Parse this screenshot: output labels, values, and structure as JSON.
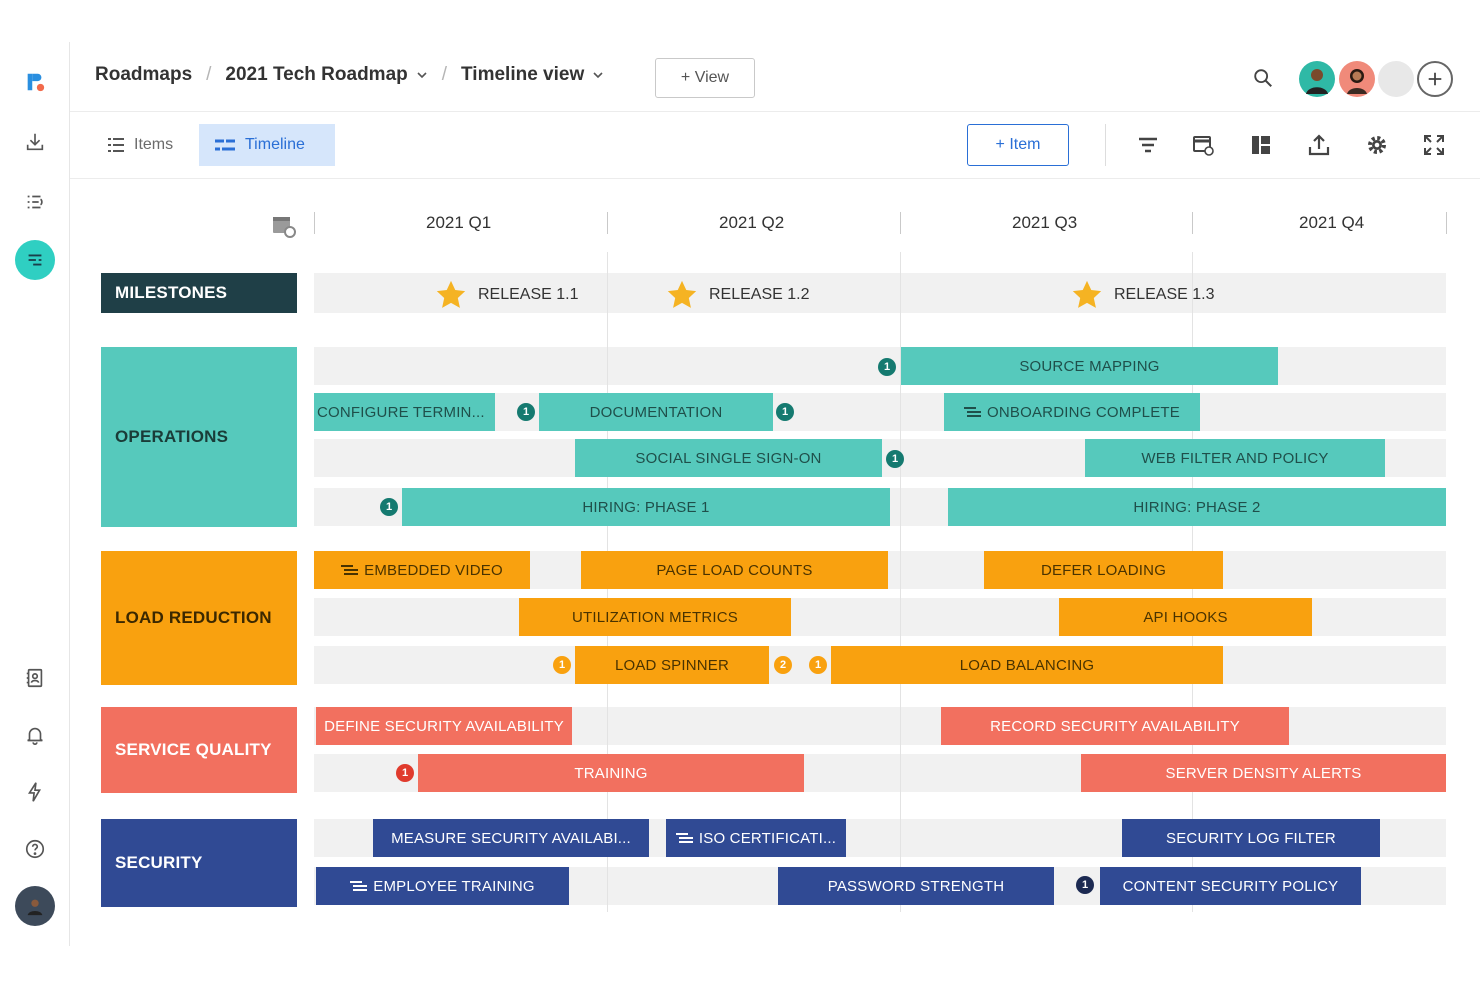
{
  "breadcrumb": {
    "root": "Roadmaps",
    "roadmap": "2021 Tech Roadmap",
    "view": "Timeline view",
    "separator": "/"
  },
  "header": {
    "add_view_label": "+ View"
  },
  "tabs": {
    "items": "Items",
    "timeline": "Timeline"
  },
  "toolbar": {
    "add_item_label": "+ Item"
  },
  "timeline": {
    "quarters": [
      "2021 Q1",
      "2021 Q2",
      "2021 Q3",
      "2021 Q4"
    ],
    "groups": {
      "milestones": "MILESTONES",
      "operations": "OPERATIONS",
      "load_reduction": "LOAD REDUCTION",
      "service_quality": "SERVICE QUALITY",
      "security": "SECURITY"
    },
    "milestones": [
      "RELEASE 1.1",
      "RELEASE 1.2",
      "RELEASE 1.3"
    ],
    "operations": {
      "source_mapping": "SOURCE MAPPING",
      "configure_terminal": "CONFIGURE TERMIN...",
      "documentation": "DOCUMENTATION",
      "onboarding_complete": "ONBOARDING COMPLETE",
      "social_sso": "SOCIAL SINGLE SIGN-ON",
      "web_filter": "WEB FILTER AND POLICY",
      "hiring_1": "HIRING: PHASE 1",
      "hiring_2": "HIRING: PHASE 2"
    },
    "load_reduction": {
      "embedded_video": "EMBEDDED VIDEO",
      "page_load_counts": "PAGE LOAD COUNTS",
      "defer_loading": "DEFER LOADING",
      "utilization_metrics": "UTILIZATION METRICS",
      "api_hooks": "API HOOKS",
      "load_spinner": "LOAD SPINNER",
      "load_balancing": "LOAD BALANCING"
    },
    "service_quality": {
      "define_security": "DEFINE SECURITY AVAILABILITY",
      "record_security": "RECORD SECURITY AVAILABILITY",
      "training": "TRAINING",
      "server_density": "SERVER DENSITY ALERTS"
    },
    "security": {
      "measure_security": "MEASURE SECURITY AVAILABI...",
      "iso_cert": "ISO CERTIFICATI...",
      "security_log": "SECURITY LOG FILTER",
      "employee_training": "EMPLOYEE TRAINING",
      "password_strength": "PASSWORD STRENGTH",
      "csp": "CONTENT SECURITY POLICY"
    },
    "badges": {
      "one": "1",
      "two": "2"
    }
  },
  "colors": {
    "milestones": "#1f3f47",
    "operations": "#56c9bc",
    "load_reduction": "#f9a10f",
    "service_quality": "#f2705f",
    "security": "#304a94",
    "accent": "#2a6fd6",
    "star": "#f5b323"
  },
  "icons": [
    "logo-icon",
    "download-icon",
    "list-icon",
    "timeline-icon",
    "contacts-icon",
    "bell-icon",
    "bolt-icon",
    "help-icon",
    "search-icon",
    "plus-circle-icon",
    "filter-icon",
    "card-settings-icon",
    "layout-icon",
    "export-icon",
    "gear-icon",
    "expand-icon",
    "calendar-settings-icon",
    "star-icon",
    "doc-icon"
  ]
}
